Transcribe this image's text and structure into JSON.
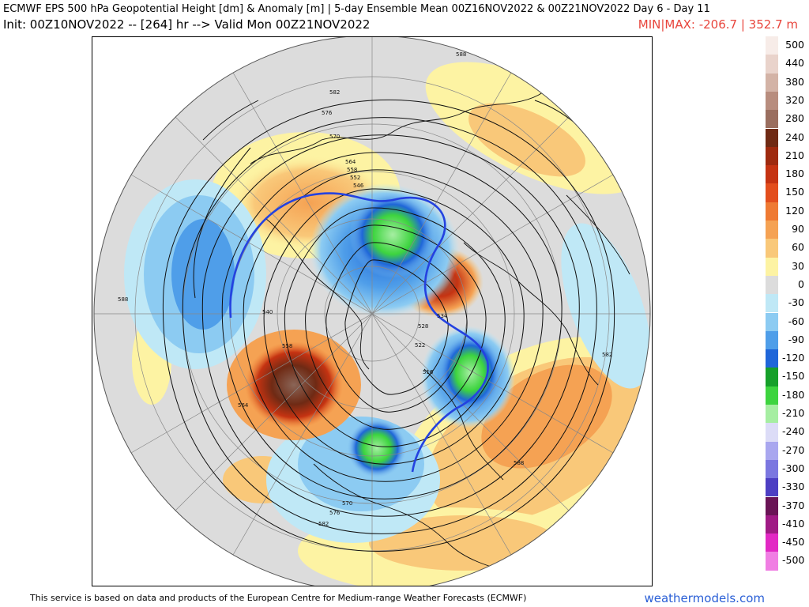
{
  "header": {
    "line1": "ECMWF EPS 500 hPa Geopotential Height [dm] & Anomaly [m] | 5-day Ensemble Mean 00Z16NOV2022 & 00Z21NOV2022   Day 6 - Day 11",
    "line2": "Init: 00Z10NOV2022 -- [264] hr --> Valid Mon 00Z21NOV2022",
    "minmax": "MIN|MAX: -206.7 | 352.7 m"
  },
  "legend": {
    "entries": [
      {
        "label": "500",
        "color": "#f7ece8"
      },
      {
        "label": "440",
        "color": "#e9d3cb"
      },
      {
        "label": "380",
        "color": "#d3b3a6"
      },
      {
        "label": "320",
        "color": "#b88d7e"
      },
      {
        "label": "280",
        "color": "#9a6e5f"
      },
      {
        "label": "240",
        "color": "#6f2a14"
      },
      {
        "label": "210",
        "color": "#9e2a0f"
      },
      {
        "label": "180",
        "color": "#c53312"
      },
      {
        "label": "150",
        "color": "#e34e1d"
      },
      {
        "label": "120",
        "color": "#ef7a33"
      },
      {
        "label": "90",
        "color": "#f5a253"
      },
      {
        "label": "60",
        "color": "#f9c879"
      },
      {
        "label": "30",
        "color": "#fdf3a3"
      },
      {
        "label": "0",
        "color": "#dcdcdc"
      },
      {
        "label": "-30",
        "color": "#bfe8f6"
      },
      {
        "label": "-60",
        "color": "#8ccbf2"
      },
      {
        "label": "-90",
        "color": "#4f9ee9"
      },
      {
        "label": "-120",
        "color": "#1f66d9"
      },
      {
        "label": "-150",
        "color": "#16a02a"
      },
      {
        "label": "-180",
        "color": "#3dd43f"
      },
      {
        "label": "-210",
        "color": "#a6eea2"
      },
      {
        "label": "-240",
        "color": "#dcdcf7"
      },
      {
        "label": "-270",
        "color": "#a9a7ef"
      },
      {
        "label": "-300",
        "color": "#7b77e0"
      },
      {
        "label": "-330",
        "color": "#4d3fc3"
      },
      {
        "label": "-370",
        "color": "#6a1456"
      },
      {
        "label": "-410",
        "color": "#a01b85"
      },
      {
        "label": "-450",
        "color": "#e229c4"
      },
      {
        "label": "-500",
        "color": "#f07ee3"
      }
    ]
  },
  "map": {
    "contour_labels": [
      "588",
      "582",
      "576",
      "570",
      "564",
      "558",
      "552",
      "546",
      "540",
      "534",
      "528",
      "522",
      "516",
      "558",
      "564",
      "570",
      "576",
      "582",
      "588",
      "588",
      "582"
    ]
  },
  "footer": {
    "credit": "This service is based on data and products of the European Centre for Medium-range Weather Forecasts (ECMWF)",
    "brand": "weathermodels.com"
  }
}
